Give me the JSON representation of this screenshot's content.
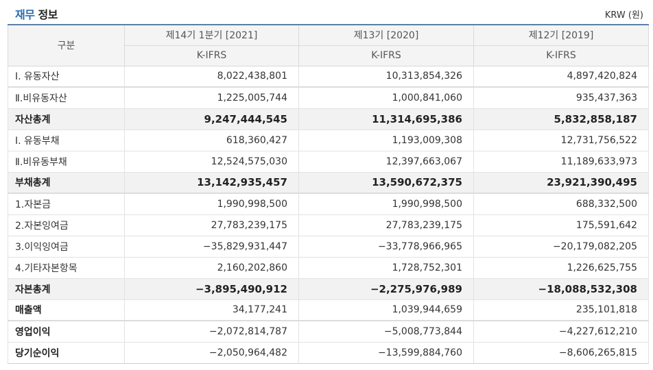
{
  "header": {
    "title_accent": "재무",
    "title_rest": " 정보",
    "currency": "KRW (원)"
  },
  "table": {
    "row_header": "구분",
    "columns": [
      {
        "period": "제14기 1분기 [2021]",
        "standard": "K-IFRS"
      },
      {
        "period": "제13기 [2020]",
        "standard": "K-IFRS"
      },
      {
        "period": "제12기 [2019]",
        "standard": "K-IFRS"
      }
    ],
    "rows": [
      {
        "label": "Ⅰ. 유동자산",
        "values": [
          "8,022,438,801",
          "10,313,854,326",
          "4,897,420,824"
        ]
      },
      {
        "label": "Ⅱ.비유동자산",
        "values": [
          "1,225,005,744",
          "1,000,841,060",
          "935,437,363"
        ]
      },
      {
        "label": "자산총계",
        "values": [
          "9,247,444,545",
          "11,314,695,386",
          "5,832,858,187"
        ]
      },
      {
        "label": "Ⅰ. 유동부채",
        "values": [
          "618,360,427",
          "1,193,009,308",
          "12,731,756,522"
        ]
      },
      {
        "label": "Ⅱ.비유동부채",
        "values": [
          "12,524,575,030",
          "12,397,663,067",
          "11,189,633,973"
        ]
      },
      {
        "label": "부채총계",
        "values": [
          "13,142,935,457",
          "13,590,672,375",
          "23,921,390,495"
        ]
      },
      {
        "label": "1.자본금",
        "values": [
          "1,990,998,500",
          "1,990,998,500",
          "688,332,500"
        ]
      },
      {
        "label": "2.자본잉여금",
        "values": [
          "27,783,239,175",
          "27,783,239,175",
          "175,591,642"
        ]
      },
      {
        "label": "3.이익잉여금",
        "values": [
          "−35,829,931,447",
          "−33,778,966,965",
          "−20,179,082,205"
        ]
      },
      {
        "label": "4.기타자본항목",
        "values": [
          "2,160,202,860",
          "1,728,752,301",
          "1,226,625,755"
        ]
      },
      {
        "label": "자본총계",
        "values": [
          "−3,895,490,912",
          "−2,275,976,989",
          "−18,088,532,308"
        ]
      },
      {
        "label": "매출액",
        "values": [
          "34,177,241",
          "1,039,944,659",
          "235,101,818"
        ]
      },
      {
        "label": "영업이익",
        "values": [
          "−2,072,814,787",
          "−5,008,773,844",
          "−4,227,612,210"
        ]
      },
      {
        "label": "당기순이익",
        "values": [
          "−2,050,964,482",
          "−13,599,884,760",
          "−8,606,265,815"
        ]
      }
    ]
  }
}
